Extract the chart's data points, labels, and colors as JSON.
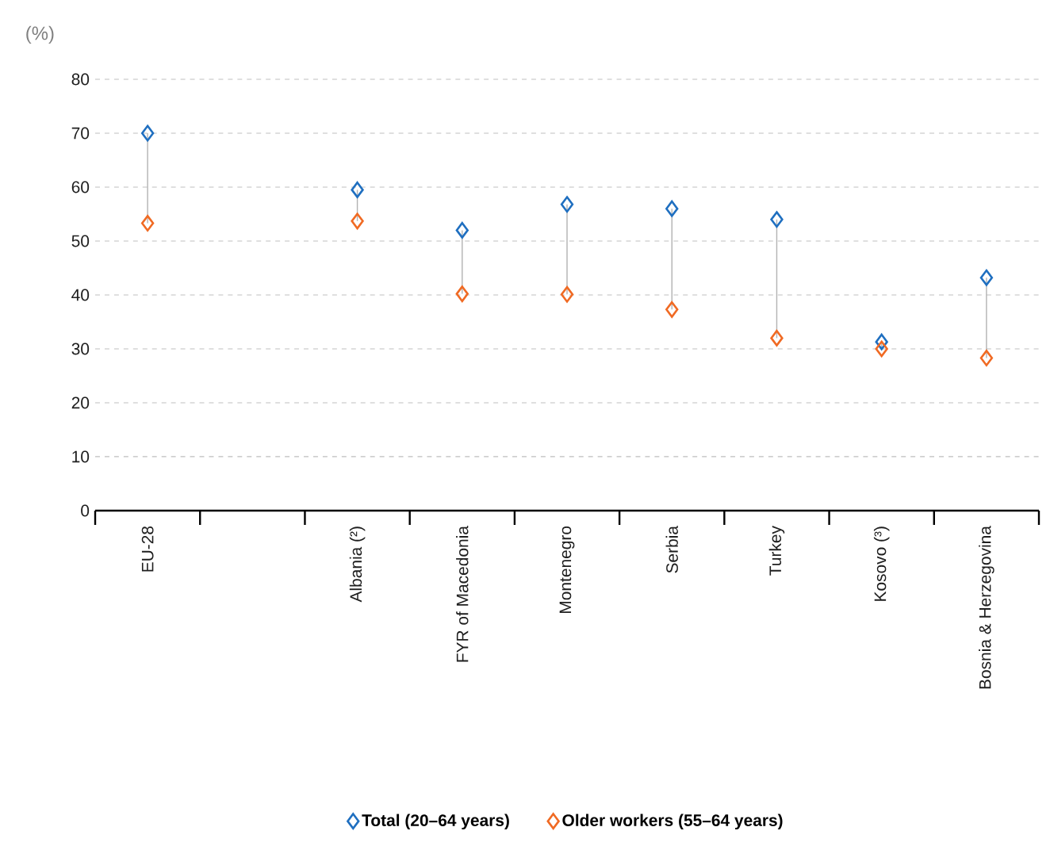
{
  "chart_data": {
    "type": "scatter",
    "ylabel": "(%)",
    "categories": [
      "EU-28",
      null,
      "Albania (²)",
      "FYR of Macedonia",
      "Montenegro",
      "Serbia",
      "Turkey",
      "Kosovo (³)",
      "Bosnia & Herzegovina"
    ],
    "series": [
      {
        "name": "Total (20–64 years)",
        "color": "#1f6fc0",
        "values": [
          70,
          null,
          59.5,
          52,
          56.8,
          56,
          54,
          31.3,
          43.2
        ]
      },
      {
        "name": "Older workers (55–64 years)",
        "color": "#f06a23",
        "values": [
          53.3,
          null,
          53.7,
          40.2,
          40.1,
          37.3,
          32,
          30,
          28.3
        ]
      }
    ],
    "ylim": [
      0,
      80
    ],
    "yticks": [
      0,
      10,
      20,
      30,
      40,
      50,
      60,
      70,
      80
    ],
    "grid": "y",
    "legend": "bottom",
    "marker": "diamond"
  }
}
